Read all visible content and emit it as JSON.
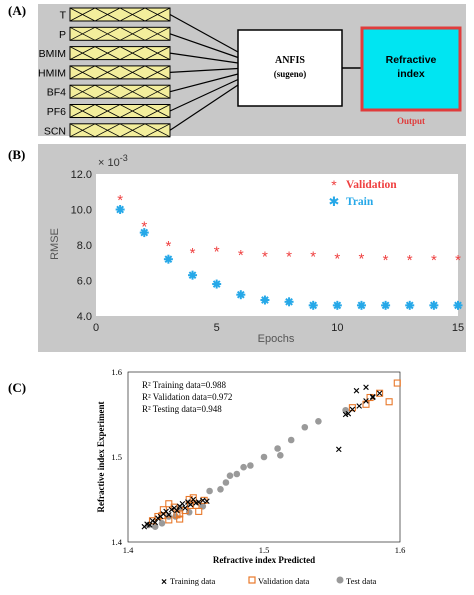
{
  "panel_a": {
    "label": "(A)",
    "inputs": [
      "T",
      "P",
      "BMIM",
      "HMIM",
      "BF4",
      "PF6",
      "SCN"
    ],
    "model_line1": "ANFIS",
    "model_line2": "(sugeno)",
    "output_line1": "Refractive",
    "output_line2": "index",
    "output_caption": "Output",
    "colors": {
      "panel_bg": "#c8c8c8",
      "input_fill": "#f3ee9c",
      "output_fill": "#00e5f2",
      "output_border": "#e03c3c"
    }
  },
  "panel_b": {
    "label": "(B)",
    "multiplier": "× 10",
    "exponent": "-3",
    "colors": {
      "panel_bg": "#c8c8c8",
      "validation": "#ef4040",
      "train": "#26a8e8"
    }
  },
  "panel_c": {
    "label": "(C)",
    "stats": [
      "R² Training data=0.988",
      "R² Validation data=0.972",
      "R² Testing data=0.948"
    ],
    "legend": [
      "Training data",
      "Validation data",
      "Test data"
    ]
  },
  "chart_data": [
    {
      "type": "scatter",
      "xlabel": "Epochs",
      "ylabel": "RMSE",
      "xlim": [
        0,
        15
      ],
      "ylim": [
        4.0,
        12.0
      ],
      "xticks": [
        "0",
        "5",
        "10",
        "15"
      ],
      "yticks": [
        "4.0",
        "6.0",
        "8.0",
        "10.0",
        "12.0"
      ],
      "legend_position": "top-right",
      "x": [
        1,
        2,
        3,
        4,
        5,
        6,
        7,
        8,
        9,
        10,
        11,
        12,
        13,
        14,
        15
      ],
      "series": [
        {
          "name": "Validation",
          "marker": "asterisk",
          "values": [
            10.6,
            9.1,
            8.0,
            7.6,
            7.7,
            7.5,
            7.4,
            7.4,
            7.4,
            7.3,
            7.3,
            7.2,
            7.2,
            7.2,
            7.2
          ]
        },
        {
          "name": "Train",
          "marker": "star",
          "values": [
            10.0,
            8.7,
            7.2,
            6.3,
            5.8,
            5.2,
            4.9,
            4.8,
            4.6,
            4.6,
            4.6,
            4.6,
            4.6,
            4.6,
            4.6
          ]
        }
      ]
    },
    {
      "type": "scatter",
      "xlabel": "Refractive index Predicted",
      "ylabel": "Refractive index Experiment",
      "xlim": [
        1.4,
        1.6
      ],
      "ylim": [
        1.4,
        1.6
      ],
      "xticks": [
        "1.4",
        "1.5",
        "1.6"
      ],
      "yticks": [
        "1.4",
        "1.5",
        "1.6"
      ],
      "legend_position": "bottom",
      "series": [
        {
          "name": "Training data",
          "marker": "x",
          "points": [
            [
              1.412,
              1.418
            ],
            [
              1.414,
              1.421
            ],
            [
              1.416,
              1.42
            ],
            [
              1.418,
              1.425
            ],
            [
              1.42,
              1.423
            ],
            [
              1.422,
              1.428
            ],
            [
              1.424,
              1.43
            ],
            [
              1.426,
              1.433
            ],
            [
              1.428,
              1.436
            ],
            [
              1.43,
              1.432
            ],
            [
              1.432,
              1.438
            ],
            [
              1.434,
              1.44
            ],
            [
              1.436,
              1.437
            ],
            [
              1.438,
              1.442
            ],
            [
              1.44,
              1.445
            ],
            [
              1.442,
              1.44
            ],
            [
              1.444,
              1.447
            ],
            [
              1.446,
              1.444
            ],
            [
              1.448,
              1.45
            ],
            [
              1.45,
              1.446
            ],
            [
              1.452,
              1.447
            ],
            [
              1.455,
              1.449
            ],
            [
              1.458,
              1.448
            ],
            [
              1.56,
              1.55
            ],
            [
              1.565,
              1.556
            ],
            [
              1.57,
              1.56
            ],
            [
              1.575,
              1.566
            ],
            [
              1.58,
              1.57
            ],
            [
              1.585,
              1.575
            ],
            [
              1.568,
              1.578
            ],
            [
              1.575,
              1.582
            ],
            [
              1.58,
              1.571
            ],
            [
              1.562,
              1.551
            ],
            [
              1.555,
              1.509
            ]
          ]
        },
        {
          "name": "Validation data",
          "marker": "square",
          "points": [
            [
              1.418,
              1.425
            ],
            [
              1.422,
              1.43
            ],
            [
              1.426,
              1.438
            ],
            [
              1.43,
              1.426
            ],
            [
              1.434,
              1.441
            ],
            [
              1.438,
              1.433
            ],
            [
              1.442,
              1.437
            ],
            [
              1.446,
              1.443
            ],
            [
              1.448,
              1.452
            ],
            [
              1.452,
              1.436
            ],
            [
              1.456,
              1.449
            ],
            [
              1.43,
              1.445
            ],
            [
              1.425,
              1.431
            ],
            [
              1.438,
              1.427
            ],
            [
              1.445,
              1.45
            ],
            [
              1.436,
              1.432
            ],
            [
              1.45,
              1.443
            ],
            [
              1.565,
              1.558
            ],
            [
              1.575,
              1.562
            ],
            [
              1.585,
              1.575
            ],
            [
              1.592,
              1.565
            ],
            [
              1.598,
              1.587
            ],
            [
              1.578,
              1.57
            ]
          ]
        },
        {
          "name": "Test data",
          "marker": "circle",
          "points": [
            [
              1.415,
              1.42
            ],
            [
              1.425,
              1.422
            ],
            [
              1.435,
              1.43
            ],
            [
              1.445,
              1.435
            ],
            [
              1.455,
              1.442
            ],
            [
              1.46,
              1.46
            ],
            [
              1.468,
              1.462
            ],
            [
              1.472,
              1.47
            ],
            [
              1.475,
              1.478
            ],
            [
              1.48,
              1.48
            ],
            [
              1.485,
              1.488
            ],
            [
              1.49,
              1.49
            ],
            [
              1.5,
              1.5
            ],
            [
              1.51,
              1.51
            ],
            [
              1.52,
              1.52
            ],
            [
              1.53,
              1.535
            ],
            [
              1.54,
              1.542
            ],
            [
              1.512,
              1.502
            ],
            [
              1.56,
              1.555
            ],
            [
              1.445,
              1.446
            ],
            [
              1.438,
              1.44
            ],
            [
              1.43,
              1.43
            ],
            [
              1.42,
              1.418
            ]
          ]
        }
      ]
    }
  ]
}
